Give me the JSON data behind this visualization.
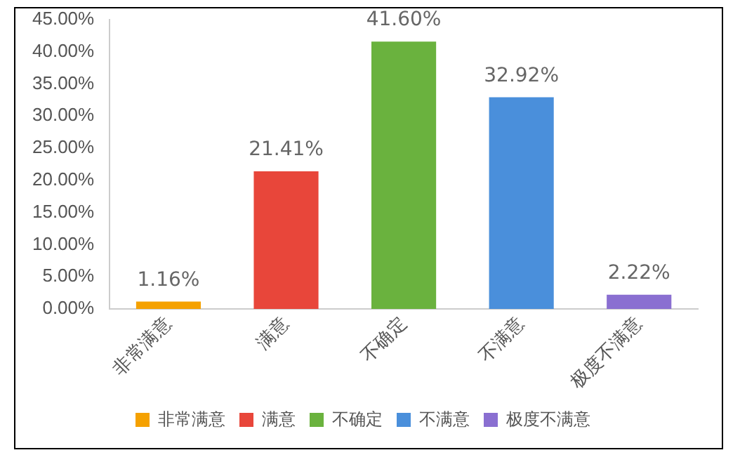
{
  "chart_data": {
    "type": "bar",
    "categories": [
      "非常满意",
      "满意",
      "不确定",
      "不满意",
      "极度不满意"
    ],
    "series": [
      {
        "name": "非常满意",
        "color": "#f5a100",
        "values": [
          1.16,
          null,
          null,
          null,
          null
        ],
        "value_labels": [
          "1.16%",
          null,
          null,
          null,
          null
        ]
      },
      {
        "name": "满意",
        "color": "#e8463a",
        "values": [
          null,
          21.41,
          null,
          null,
          null
        ],
        "value_labels": [
          null,
          "21.41%",
          null,
          null,
          null
        ]
      },
      {
        "name": "不确定",
        "color": "#6ab23e",
        "values": [
          null,
          null,
          41.6,
          null,
          null
        ],
        "value_labels": [
          null,
          null,
          "41.60%",
          null,
          null
        ]
      },
      {
        "name": "不满意",
        "color": "#4a8fdb",
        "values": [
          null,
          null,
          null,
          32.92,
          null
        ],
        "value_labels": [
          null,
          null,
          null,
          "32.92%",
          null
        ]
      },
      {
        "name": "极度不满意",
        "color": "#8a6fd1",
        "values": [
          null,
          null,
          null,
          null,
          2.22
        ],
        "value_labels": [
          null,
          null,
          null,
          null,
          "2.22%"
        ]
      }
    ],
    "ylim": [
      0,
      45
    ],
    "yticks": [
      {
        "value": 0,
        "label": "0.00%"
      },
      {
        "value": 5,
        "label": "5.00%"
      },
      {
        "value": 10,
        "label": "10.00%"
      },
      {
        "value": 15,
        "label": "15.00%"
      },
      {
        "value": 20,
        "label": "20.00%"
      },
      {
        "value": 25,
        "label": "25.00%"
      },
      {
        "value": 30,
        "label": "30.00%"
      },
      {
        "value": 35,
        "label": "35.00%"
      },
      {
        "value": 40,
        "label": "40.00%"
      },
      {
        "value": 45,
        "label": "45.00%"
      }
    ],
    "grid": false,
    "legend": "bottom"
  }
}
